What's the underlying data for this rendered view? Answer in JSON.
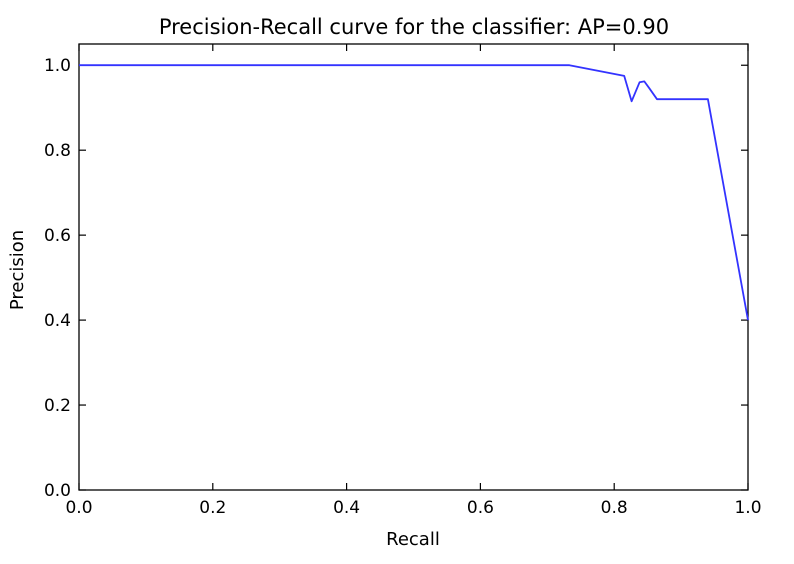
{
  "chart_data": {
    "type": "line",
    "title": "Precision-Recall curve for the classifier: AP=0.90",
    "xlabel": "Recall",
    "ylabel": "Precision",
    "xlim": [
      0.0,
      1.0
    ],
    "ylim": [
      0.0,
      1.05
    ],
    "grid": false,
    "xticks": [
      "0.0",
      "0.2",
      "0.4",
      "0.6",
      "0.8",
      "1.0"
    ],
    "yticks": [
      "0.0",
      "0.2",
      "0.4",
      "0.6",
      "0.8",
      "1.0"
    ],
    "series": [
      {
        "color": "#3333ff",
        "x": [
          0.0,
          0.733,
          0.815,
          0.826,
          0.838,
          0.845,
          0.852,
          0.864,
          0.94,
          1.0
        ],
        "y": [
          1.0,
          1.0,
          0.975,
          0.915,
          0.96,
          0.962,
          0.947,
          0.92,
          0.92,
          0.4
        ]
      }
    ]
  }
}
